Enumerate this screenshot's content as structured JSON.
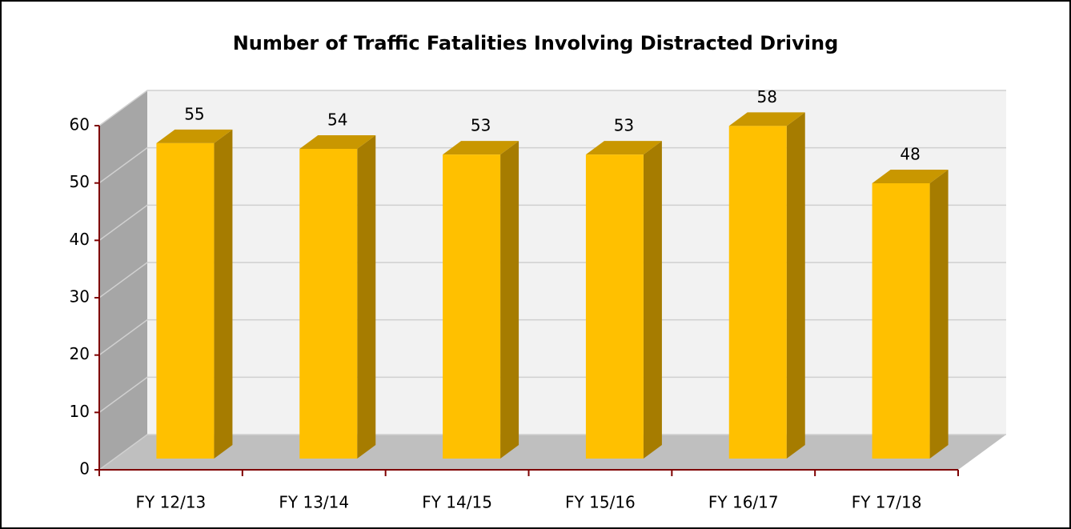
{
  "chart_data": {
    "type": "bar3d",
    "title": "Number of Traffic Fatalities Involving Distracted Driving",
    "categories": [
      "FY 12/13",
      "FY 13/14",
      "FY 14/15",
      "FY 15/16",
      "FY 16/17",
      "FY 17/18"
    ],
    "values": [
      55,
      54,
      53,
      53,
      58,
      48
    ],
    "color": "#ffc000",
    "ylim": [
      0,
      60
    ],
    "yticks": [
      0,
      10,
      20,
      30,
      40,
      50,
      60
    ],
    "grid": true
  }
}
